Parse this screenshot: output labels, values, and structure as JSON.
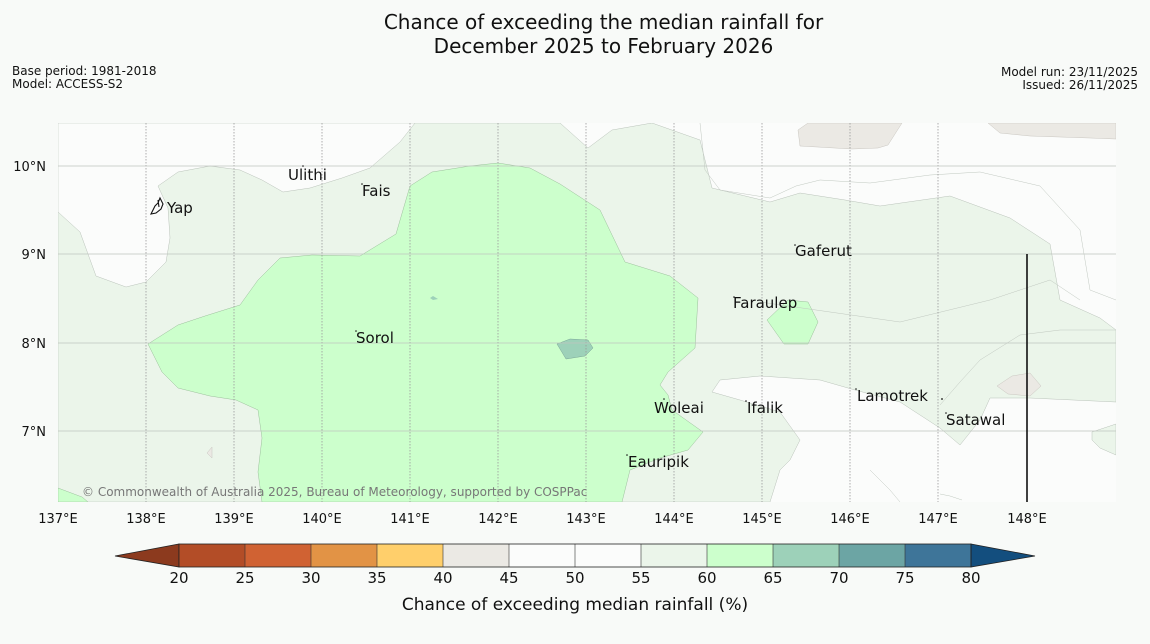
{
  "title": {
    "line1": "Chance of exceeding the median rainfall for",
    "line2": "December 2025 to February 2026"
  },
  "meta_left": {
    "base_period": "Base period: 1981-2018",
    "model": "Model: ACCESS-S2"
  },
  "meta_right": {
    "model_run": "Model run: 23/11/2025",
    "issued": "Issued: 26/11/2025"
  },
  "map": {
    "lon_labels": [
      "137°E",
      "138°E",
      "139°E",
      "140°E",
      "141°E",
      "142°E",
      "143°E",
      "144°E",
      "145°E",
      "146°E",
      "147°E",
      "148°E"
    ],
    "lat_labels": [
      "10°N",
      "9°N",
      "8°N",
      "7°N"
    ],
    "places": [
      "Ulithi",
      "Fais",
      "Yap",
      "Gaferut",
      "Faraulep",
      "Sorol",
      "Lamotrek",
      "Woleai",
      "Ifalik",
      "Satawal",
      "Eauripik"
    ],
    "copyright": "© Commonwealth of Australia 2025, Bureau of Meteorology, supported by COSPPac"
  },
  "colorbar": {
    "title": "Chance of exceeding median rainfall (%)",
    "tick_labels": [
      "20",
      "25",
      "30",
      "35",
      "40",
      "45",
      "50",
      "55",
      "60",
      "65",
      "70",
      "75",
      "80"
    ],
    "colors": {
      "under": "#8c3a1e",
      "c20_25": "#b34d27",
      "c25_30": "#d06233",
      "c30_35": "#e29345",
      "c35_40": "#ffcf6b",
      "c40_45": "#ebe9e4",
      "c45_50": "#fbfcfb",
      "c50_55": "#fbfcfb",
      "c55_60": "#ebf5ea",
      "c60_65": "#ccffcc",
      "c65_70": "#9dd1b9",
      "c70_75": "#6ca5a4",
      "c75_80": "#3e7599",
      "over": "#134e7e"
    }
  }
}
